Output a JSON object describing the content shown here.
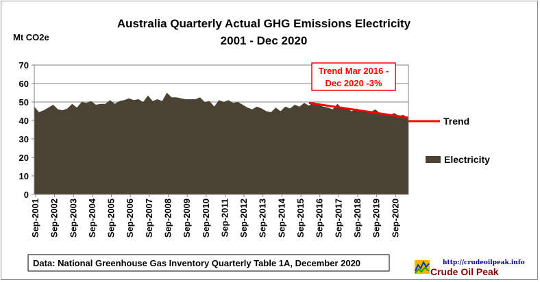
{
  "chart_data": {
    "type": "area",
    "title_line1": "Australia  Quarterly Actual GHG Emissions Electricity",
    "title_line2": "2001 - Dec 2020",
    "ylabel": "Mt CO2e",
    "ylim": [
      0,
      70
    ],
    "yticks": [
      "0",
      "10",
      "20",
      "30",
      "40",
      "50",
      "60",
      "70"
    ],
    "grid": true,
    "xtick_labels": [
      "Sep-2001",
      "Sep-2002",
      "Sep-2003",
      "Sep-2004",
      "Sep-2005",
      "Sep-2006",
      "Sep-2007",
      "Sep-2008",
      "Sep-2009",
      "Sep-2010",
      "Sep-2011",
      "Sep-2012",
      "Sep-2013",
      "Sep-2014",
      "Sep-2015",
      "Sep-2016",
      "Sep-2017",
      "Sep-2018",
      "Sep-2019",
      "Sep-2020"
    ],
    "series": [
      {
        "name": "Electricity",
        "color": "#4a4232",
        "values": [
          47.5,
          44.5,
          45.5,
          47,
          48.5,
          46,
          45.5,
          46.5,
          49,
          47,
          50,
          49.5,
          50.5,
          48.5,
          49,
          49,
          51,
          49,
          50.5,
          51,
          52,
          51,
          51.5,
          50,
          53.5,
          50.5,
          51.5,
          50.5,
          55,
          52.5,
          52.5,
          52,
          51.5,
          51.5,
          51.5,
          52.5,
          50,
          50.5,
          47.5,
          51,
          50,
          51,
          49.5,
          50,
          48.5,
          47,
          46,
          47.5,
          46.5,
          45,
          44.5,
          47,
          45,
          47.5,
          46.5,
          48.5,
          47.5,
          49.5,
          48,
          50,
          48.5,
          47.5,
          47,
          46,
          49,
          46.5,
          46.5,
          45,
          46.5,
          45.5,
          45,
          44.5,
          46,
          44,
          43.5,
          43,
          44,
          42.5,
          43,
          40.5
        ]
      },
      {
        "name": "Trend",
        "color": "#ff0000",
        "start_value": 49.5,
        "end_value": 41.5
      }
    ],
    "annotation_line1": "Trend Mar 2016 -",
    "annotation_line2": "Dec 2020   -3%",
    "legend": [
      "Trend",
      "Electricity"
    ],
    "legend_position": "right"
  },
  "source": "Data: National Greenhouse Gas Inventory Quarterly Table 1A, December 2020",
  "logo": {
    "url": "http://crudeoilpeak.info",
    "name": "Crude Oil Peak"
  }
}
